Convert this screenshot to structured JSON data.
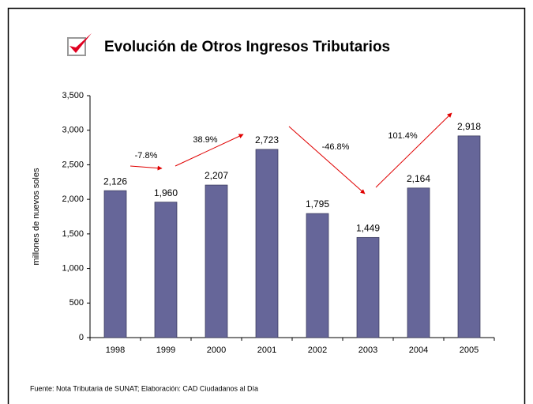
{
  "chart_data": {
    "type": "bar",
    "title": "Evolución de Otros Ingresos Tributarios",
    "y_label": "millones de nuevos soles",
    "footer": "Fuente: Nota Tributaria de SUNAT; Elaboración: CAD Ciudadanos al Día",
    "categories": [
      "1998",
      "1999",
      "2000",
      "2001",
      "2002",
      "2003",
      "2004",
      "2005"
    ],
    "values": [
      2126,
      1960,
      2207,
      2723,
      1795,
      1449,
      2164,
      2918
    ],
    "value_labels": [
      "2,126",
      "1,960",
      "2,207",
      "2,723",
      "1,795",
      "1,449",
      "2,164",
      "2,918"
    ],
    "color": "#666699",
    "ylim": [
      0,
      3500
    ],
    "yticks": [
      0,
      500,
      {
        "value": 1000,
        "label": "1,000"
      },
      {
        "value": 1500,
        "label": "1,500"
      },
      {
        "value": 2000,
        "label": "2,000"
      },
      {
        "value": 2500,
        "label": "2,500"
      },
      {
        "value": 3000,
        "label": "3,000"
      },
      {
        "value": 3500,
        "label": "3,500"
      }
    ],
    "annotations": [
      "-7.8%",
      "38.9%",
      "-46.8%",
      "101.4%"
    ]
  }
}
